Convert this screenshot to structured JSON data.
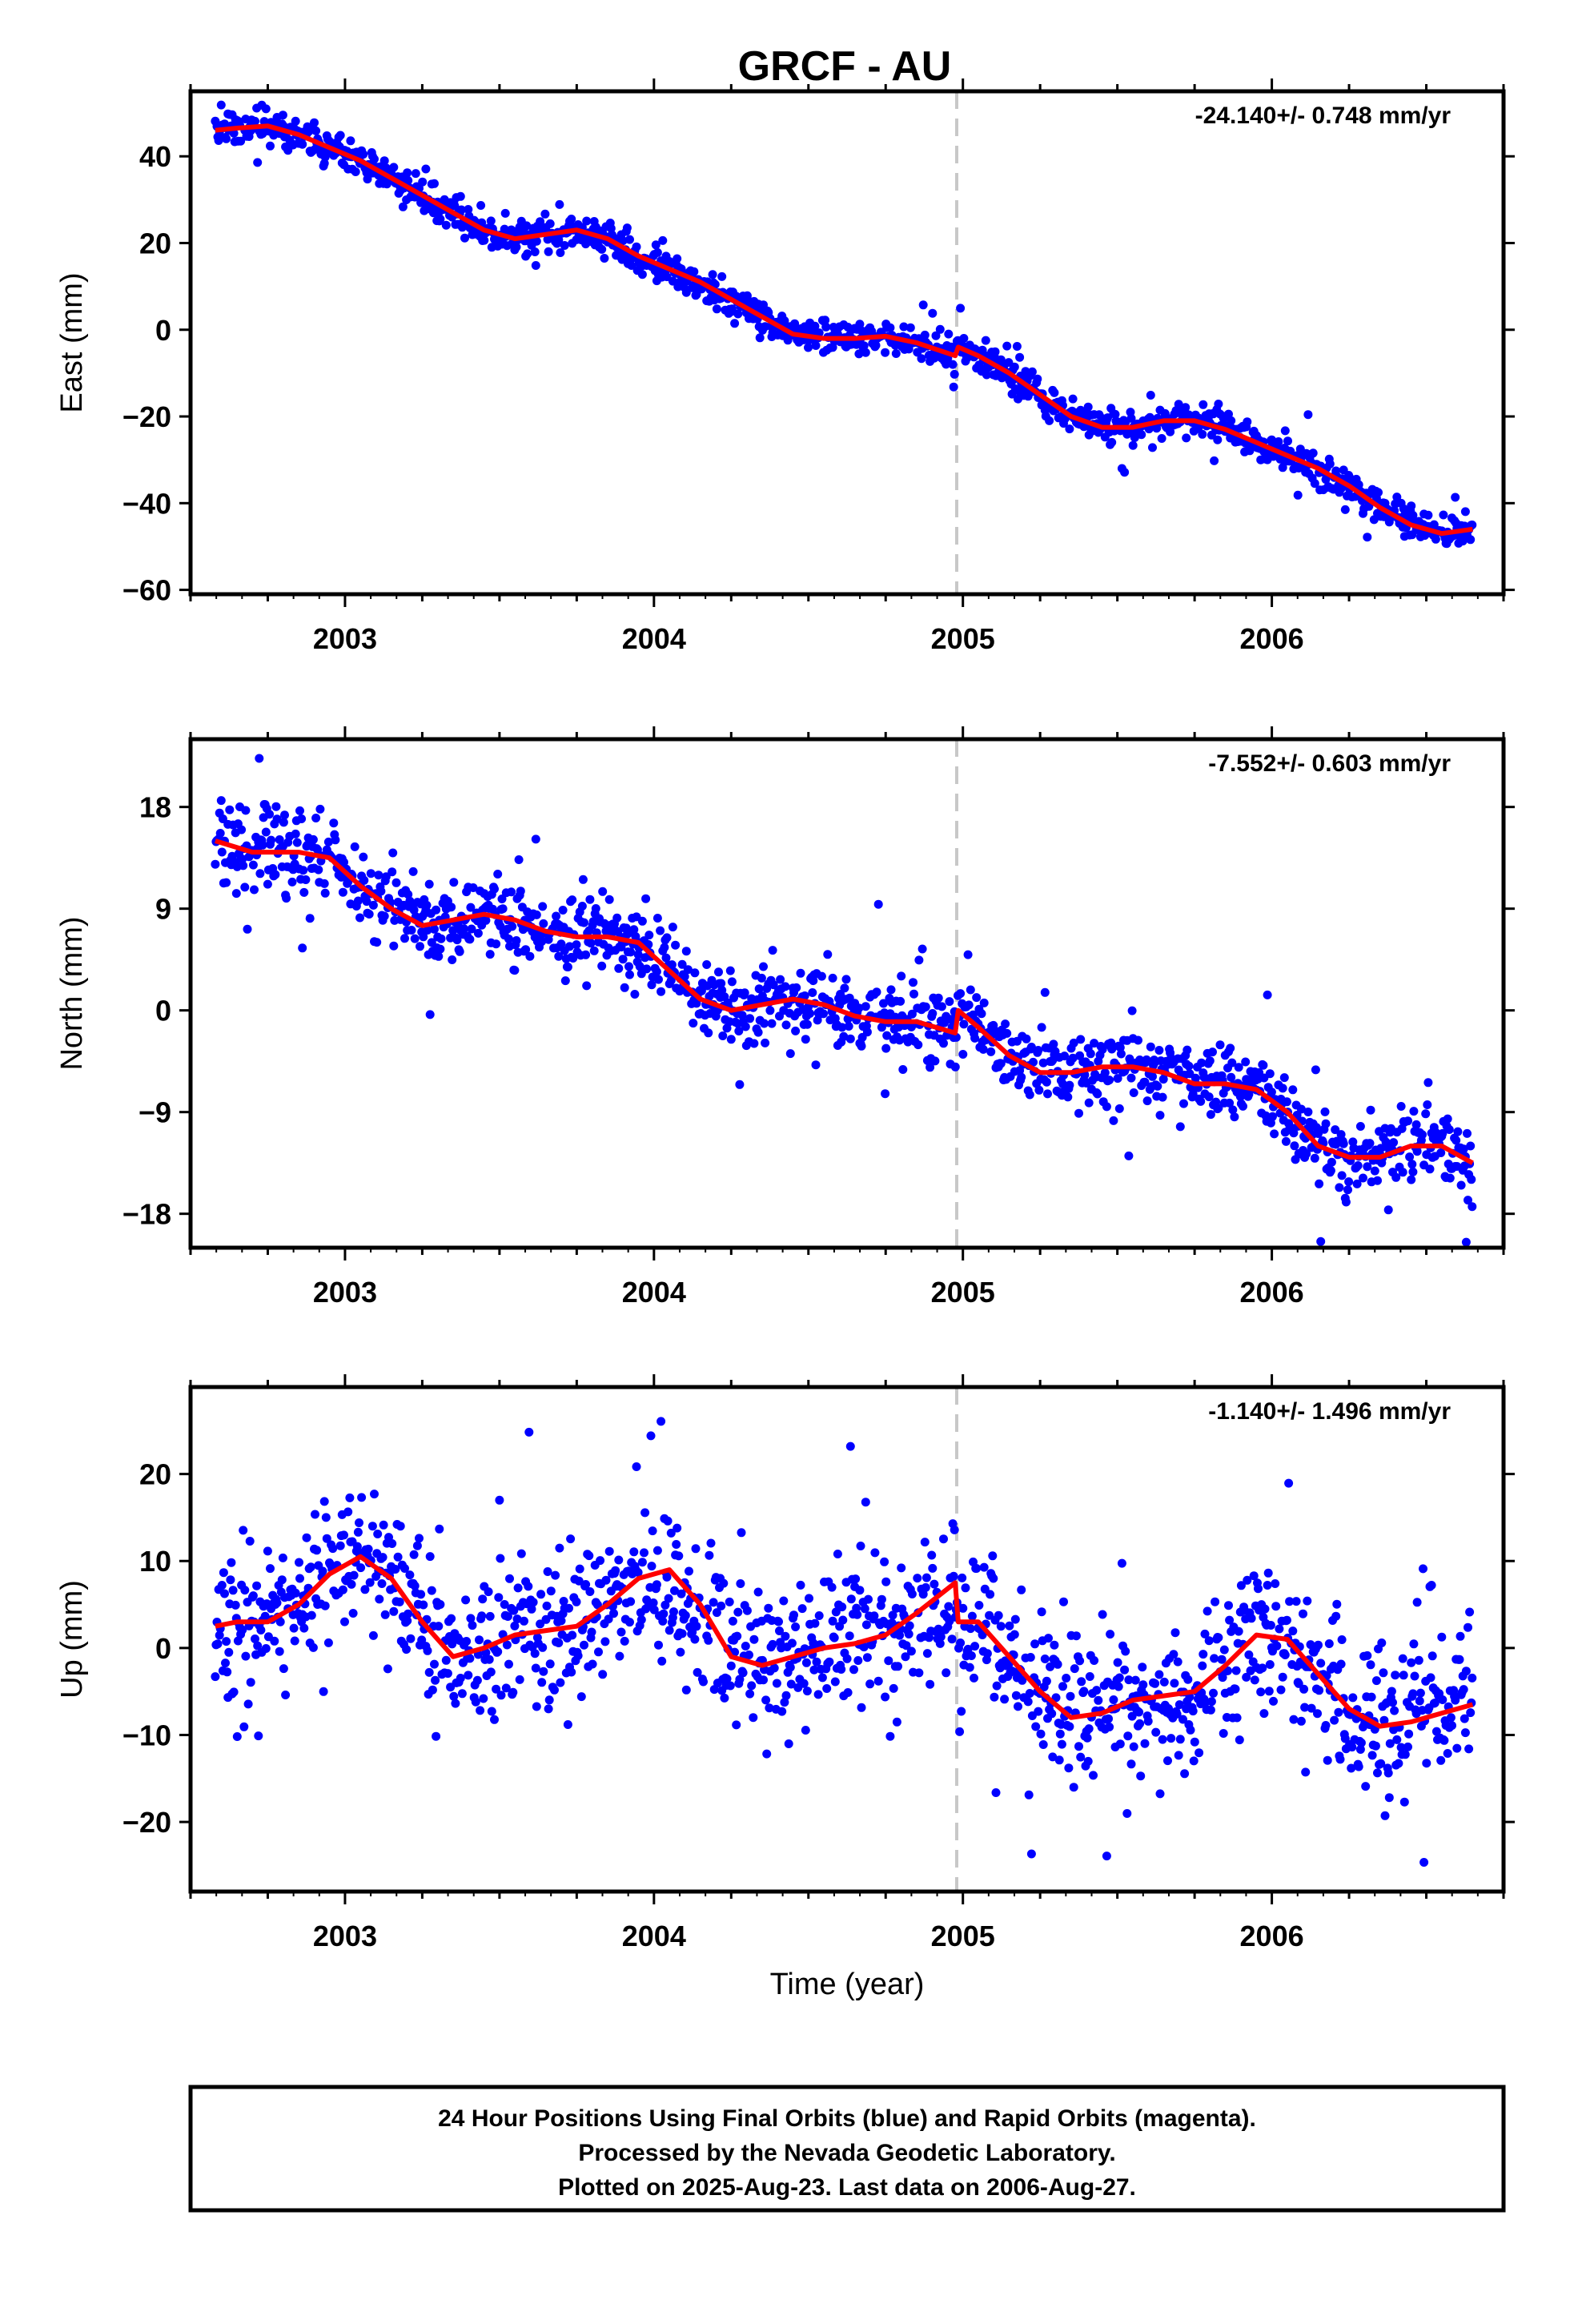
{
  "title": "GRCF - AU",
  "footer": {
    "lines": [
      "24 Hour Positions Using Final Orbits (blue) and Rapid Orbits (magenta).",
      "Processed by the Nevada Geodetic Laboratory.",
      "Plotted on 2025-Aug-23. Last data on 2006-Aug-27."
    ]
  },
  "colors": {
    "points": "#0000ff",
    "model": "#ff0000",
    "event_line": "#c8c8c8",
    "frame": "#000000"
  },
  "chart_data": [
    {
      "type": "scatter",
      "name": "east",
      "ylabel": "East (mm)",
      "xlabel": "",
      "rate_text": "-24.140+/- 0.748 mm/yr",
      "xlim": [
        2002.5,
        2006.75
      ],
      "ylim": [
        -61,
        55
      ],
      "yticks": [
        40,
        20,
        0,
        -20,
        -40,
        -60
      ],
      "yticklabels": [
        "40",
        "20",
        "0",
        "−20",
        "−40",
        "−60"
      ],
      "xticks": [
        2003,
        2004,
        2005,
        2006
      ],
      "xticklabels": [
        "2003",
        "2004",
        "2005",
        "2006"
      ],
      "event_x": 2004.98,
      "model_fit": {
        "x": [
          2002.58,
          2002.65,
          2002.75,
          2002.85,
          2002.95,
          2003.05,
          2003.15,
          2003.25,
          2003.35,
          2003.45,
          2003.55,
          2003.65,
          2003.75,
          2003.85,
          2003.95,
          2004.05,
          2004.15,
          2004.25,
          2004.35,
          2004.45,
          2004.55,
          2004.65,
          2004.75,
          2004.85,
          2004.975,
          2004.985,
          2005.05,
          2005.15,
          2005.25,
          2005.35,
          2005.45,
          2005.55,
          2005.65,
          2005.75,
          2005.85,
          2005.95,
          2006.05,
          2006.15,
          2006.25,
          2006.35,
          2006.45,
          2006.55,
          2006.65
        ],
        "y": [
          46,
          46.5,
          47,
          45,
          42,
          39,
          35,
          31,
          27,
          23,
          21,
          22,
          23,
          21,
          17,
          14,
          11,
          7,
          3,
          -1,
          -2,
          -2,
          -1.5,
          -3,
          -6,
          -4,
          -6,
          -10,
          -15,
          -20,
          -22.5,
          -22.5,
          -21,
          -21,
          -23,
          -26,
          -29,
          -32,
          -36,
          -41,
          -45,
          -47,
          -46
        ]
      },
      "scatter": {
        "base": "model",
        "spread": 1.8,
        "outlier": 4.5,
        "seed": 11
      }
    },
    {
      "type": "scatter",
      "name": "north",
      "ylabel": "North (mm)",
      "xlabel": "",
      "rate_text": "-7.552+/- 0.603 mm/yr",
      "xlim": [
        2002.5,
        2006.75
      ],
      "ylim": [
        -21,
        24
      ],
      "yticks": [
        18,
        9,
        0,
        -9,
        -18
      ],
      "yticklabels": [
        "18",
        "9",
        "0",
        "−9",
        "−18"
      ],
      "xticks": [
        2003,
        2004,
        2005,
        2006
      ],
      "xticklabels": [
        "2003",
        "2004",
        "2005",
        "2006"
      ],
      "event_x": 2004.98,
      "model_fit": {
        "x": [
          2002.58,
          2002.7,
          2002.85,
          2002.95,
          2003.05,
          2003.15,
          2003.25,
          2003.35,
          2003.45,
          2003.55,
          2003.65,
          2003.75,
          2003.85,
          2003.95,
          2004.05,
          2004.15,
          2004.25,
          2004.35,
          2004.45,
          2004.55,
          2004.65,
          2004.75,
          2004.85,
          2004.975,
          2004.985,
          2005.05,
          2005.15,
          2005.25,
          2005.35,
          2005.45,
          2005.55,
          2005.65,
          2005.75,
          2005.85,
          2005.95,
          2006.05,
          2006.15,
          2006.25,
          2006.35,
          2006.45,
          2006.55,
          2006.65
        ],
        "y": [
          15,
          14,
          14,
          13.5,
          11,
          9,
          7.5,
          8,
          8.5,
          8,
          7,
          6.5,
          6.5,
          6,
          3.5,
          1,
          0,
          0.5,
          1,
          0.5,
          -0.5,
          -1,
          -1,
          -2,
          0,
          -1.5,
          -4,
          -5.5,
          -5.5,
          -5,
          -5,
          -5.5,
          -6.5,
          -6.5,
          -7,
          -9,
          -12,
          -13,
          -13,
          -12,
          -12,
          -13.5
        ]
      },
      "scatter": {
        "base": "model",
        "spread": 1.6,
        "outlier": 4.0,
        "seed": 23
      }
    },
    {
      "type": "scatter",
      "name": "up",
      "ylabel": "Up (mm)",
      "xlabel": "Time (year)",
      "rate_text": "-1.140+/- 1.496 mm/yr",
      "xlim": [
        2002.5,
        2006.75
      ],
      "ylim": [
        -28,
        30
      ],
      "yticks": [
        20,
        10,
        0,
        -10,
        -20
      ],
      "yticklabels": [
        "20",
        "10",
        "0",
        "−10",
        "−20"
      ],
      "xticks": [
        2003,
        2004,
        2005,
        2006
      ],
      "xticklabels": [
        "2003",
        "2004",
        "2005",
        "2006"
      ],
      "event_x": 2004.98,
      "model_fit": {
        "x": [
          2002.58,
          2002.65,
          2002.75,
          2002.85,
          2002.95,
          2003.05,
          2003.15,
          2003.25,
          2003.35,
          2003.45,
          2003.55,
          2003.65,
          2003.75,
          2003.85,
          2003.95,
          2004.05,
          2004.15,
          2004.25,
          2004.35,
          2004.45,
          2004.55,
          2004.65,
          2004.75,
          2004.85,
          2004.975,
          2004.985,
          2005.05,
          2005.15,
          2005.25,
          2005.35,
          2005.45,
          2005.55,
          2005.65,
          2005.75,
          2005.85,
          2005.95,
          2006.05,
          2006.15,
          2006.25,
          2006.35,
          2006.45,
          2006.55,
          2006.65
        ],
        "y": [
          2.5,
          3,
          3,
          5,
          8.5,
          10.5,
          8,
          3,
          -1,
          0,
          1.5,
          2,
          2.5,
          5,
          8,
          9,
          5,
          -1,
          -2,
          -1,
          0,
          0.5,
          1.5,
          4,
          7.5,
          3,
          3,
          -1,
          -5,
          -8,
          -7.5,
          -6,
          -5.5,
          -5,
          -2,
          1.5,
          1,
          -3,
          -7,
          -9,
          -8.5,
          -7.5,
          -6.5
        ]
      },
      "scatter": {
        "base": "model",
        "spread": 4.0,
        "outlier": 10.0,
        "seed": 37
      }
    }
  ]
}
